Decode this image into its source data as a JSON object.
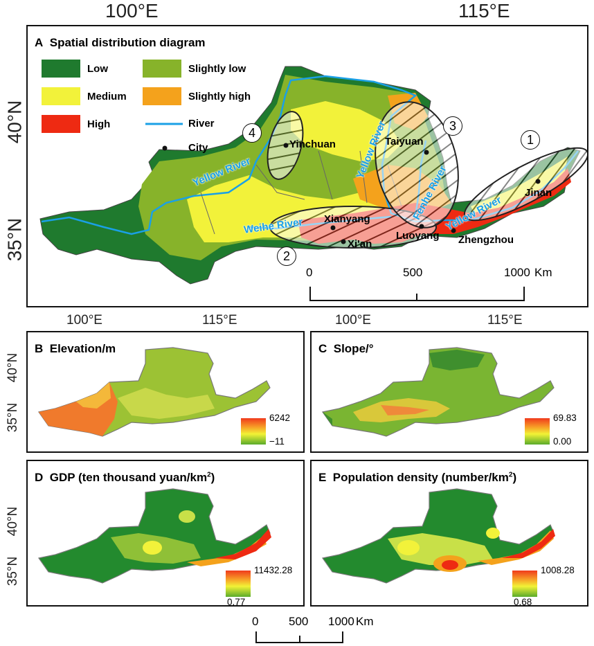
{
  "panel_a": {
    "letter": "A",
    "title": "Spatial distribution diagram",
    "coords": {
      "lon_left": "100°E",
      "lon_right": "115°E",
      "lat_top": "40°N",
      "lat_bottom": "35°N"
    },
    "legend": {
      "low": "Low",
      "slightly_low": "Slightly low",
      "medium": "Medium",
      "slightly_high": "Slightly high",
      "high": "High",
      "river": "River",
      "city": "City"
    },
    "colors": {
      "low": "#1f7a2e",
      "slightly_low": "#87b32a",
      "medium": "#f2f23a",
      "slightly_high": "#f4a21c",
      "high": "#ee2a12",
      "river": "#1aa0e6"
    },
    "cities": {
      "yinchuan": "Yinchuan",
      "taiyuan": "Taiyuan",
      "jinan": "Jinan",
      "xianyang": "Xianyang",
      "xian": "Xi'an",
      "luoyang": "Luoyang",
      "zhengzhou": "Zhengzhou"
    },
    "rivers": {
      "yellow_1": "Yellow River",
      "yellow_2": "Yellow River",
      "yellow_3": "Yellow River",
      "weihe": "Weihe River",
      "fenhe": "Fenhe River"
    },
    "zones": {
      "z1": "1",
      "z2": "2",
      "z3": "3",
      "z4": "4"
    },
    "scale": {
      "t0": "0",
      "t1": "500",
      "t2": "1000",
      "unit": "Km"
    }
  },
  "small_coords": {
    "lon_left": "100°E",
    "lon_right": "115°E",
    "lat_top": "40°N",
    "lat_bottom": "35°N"
  },
  "panel_b": {
    "letter": "B",
    "title": "Elevation/m",
    "max": "6242",
    "min": "−11"
  },
  "panel_c": {
    "letter": "C",
    "title": "Slope/°",
    "max": "69.83",
    "min": "0.00"
  },
  "panel_d": {
    "letter": "D",
    "title": "GDP (ten thousand yuan/km",
    "sup": "2",
    "close": ")",
    "max": "11432.28",
    "min": "0.77"
  },
  "panel_e": {
    "letter": "E",
    "title": "Population density (number/km",
    "sup": "2",
    "close": ")",
    "max": "1008.28",
    "min": "0.68"
  },
  "bottom_scale": {
    "t0": "0",
    "t1": "500",
    "t2": "1000",
    "unit": "Km"
  }
}
